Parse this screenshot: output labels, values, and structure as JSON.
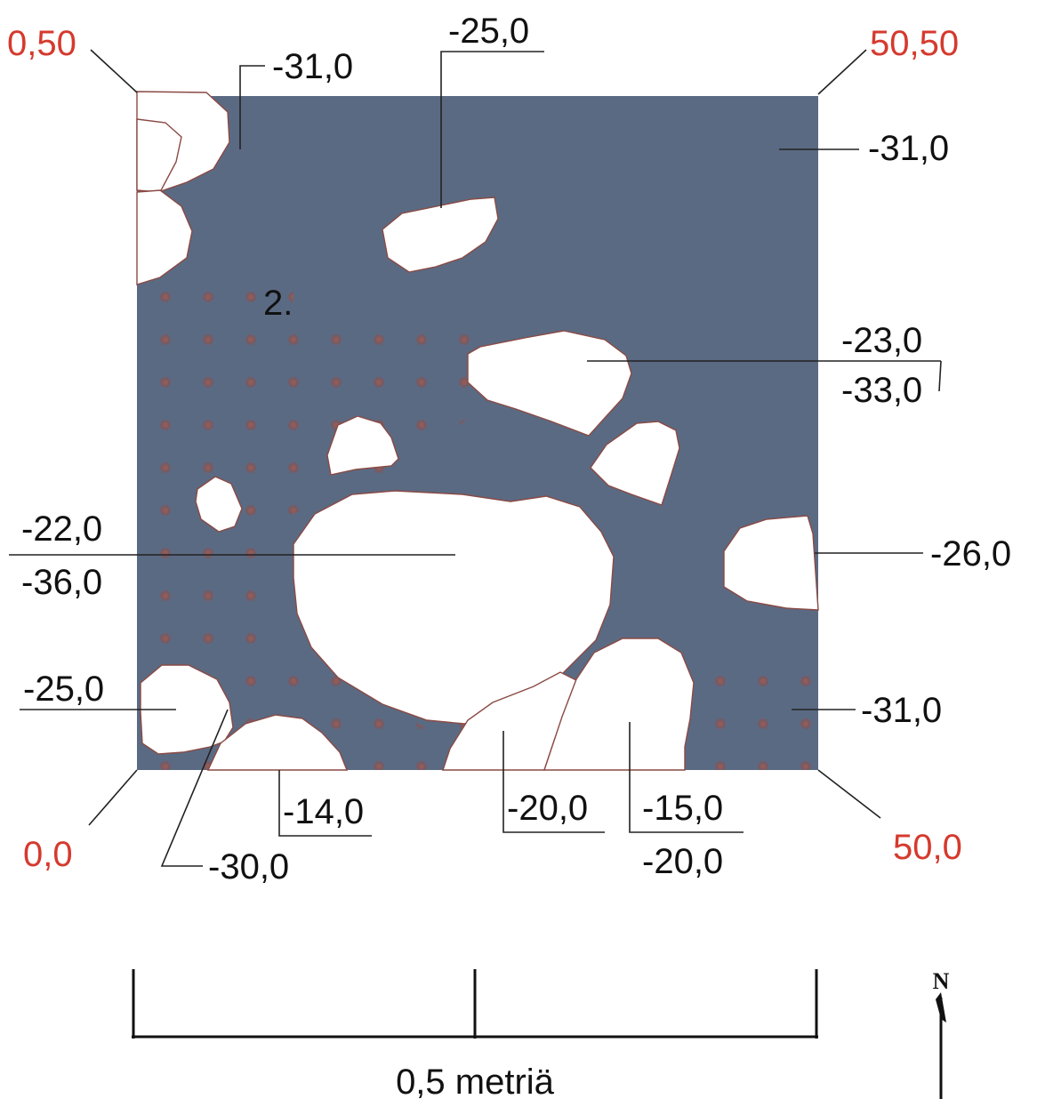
{
  "figure": {
    "section_number": "2.",
    "colors": {
      "layer": "#5b6a83",
      "stone": "#ffffff",
      "corner_text": "#d53a2e",
      "text": "#111111",
      "dots": "#8a4f4f"
    }
  },
  "corners": {
    "top_left": "0,50",
    "top_right": "50,50",
    "bottom_left": "0,0",
    "bottom_right": "50,0"
  },
  "depths": {
    "top_left_area": "-31,0",
    "stone_top": "-25,0",
    "top_right_area": "-31,0",
    "stone_right_upper_top": "-23,0",
    "stone_right_upper_bottom": "-33,0",
    "big_stone_top": "-22,0",
    "big_stone_bottom": "-36,0",
    "stone_right_edge": "-26,0",
    "stone_left_lower": "-25,0",
    "bottom_right_area": "-31,0",
    "stone_bottom_a": "-14,0",
    "stone_bottom_left": "-30,0",
    "stone_bottom_b": "-20,0",
    "stone_bottom_c_top": "-15,0",
    "stone_bottom_c_bottom": "-20,0"
  },
  "scale_bar": {
    "label": "0,5 metriä"
  },
  "north_arrow": {
    "label": "N",
    "icon": "north-arrow-icon"
  }
}
